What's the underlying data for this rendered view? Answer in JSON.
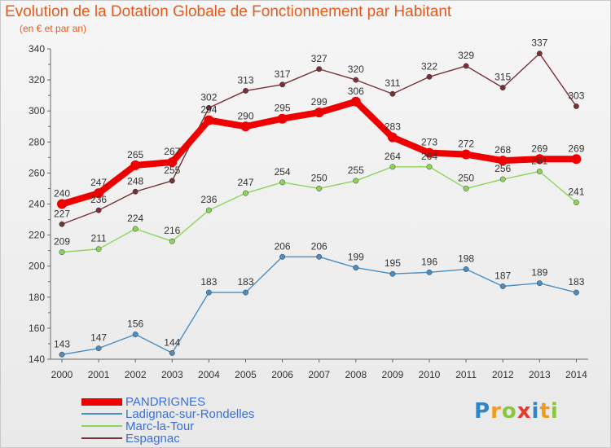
{
  "title": "Evolution de la Dotation Globale de Fonctionnement par Habitant",
  "subtitle": "(en € et par an)",
  "logo": {
    "letters": [
      {
        "ch": "P",
        "color": "#2e86c8"
      },
      {
        "ch": "r",
        "color": "#f29a1e"
      },
      {
        "ch": "o",
        "color": "#8cc63e"
      },
      {
        "ch": "x",
        "color": "#e8382c"
      },
      {
        "ch": "i",
        "color": "#2e86c8"
      },
      {
        "ch": "t",
        "color": "#f29a1e"
      },
      {
        "ch": "i",
        "color": "#8cc63e"
      }
    ]
  },
  "chart_data": {
    "type": "line",
    "title": "Evolution de la Dotation Globale de Fonctionnement par Habitant",
    "subtitle": "(en € et par an)",
    "x": [
      "2000",
      "2001",
      "2002",
      "2003",
      "2004",
      "2005",
      "2006",
      "2007",
      "2008",
      "2009",
      "2010",
      "2011",
      "2012",
      "2013",
      "2014"
    ],
    "ylim": [
      140,
      340
    ],
    "yticks": [
      140,
      160,
      180,
      200,
      220,
      240,
      260,
      280,
      300,
      320,
      340
    ],
    "grid": false,
    "legend_position": "bottom-left",
    "series": [
      {
        "name": "PANDRIGNES",
        "color": "#ee0000",
        "values": [
          240,
          247,
          265,
          267,
          294,
          290,
          295,
          299,
          306,
          283,
          273,
          272,
          268,
          269,
          269
        ]
      },
      {
        "name": "Ladignac-sur-Rondelles",
        "color": "#4a8ec4",
        "values": [
          143,
          147,
          156,
          144,
          183,
          183,
          206,
          206,
          199,
          195,
          196,
          198,
          187,
          189,
          183
        ]
      },
      {
        "name": "Marc-la-Tour",
        "color": "#8fd45a",
        "values": [
          209,
          211,
          224,
          216,
          236,
          247,
          254,
          250,
          255,
          264,
          264,
          250,
          256,
          261,
          241
        ]
      },
      {
        "name": "Espagnac",
        "color": "#7a2e35",
        "values": [
          227,
          236,
          248,
          255,
          302,
          313,
          317,
          327,
          320,
          311,
          322,
          329,
          315,
          337,
          303
        ]
      }
    ]
  }
}
